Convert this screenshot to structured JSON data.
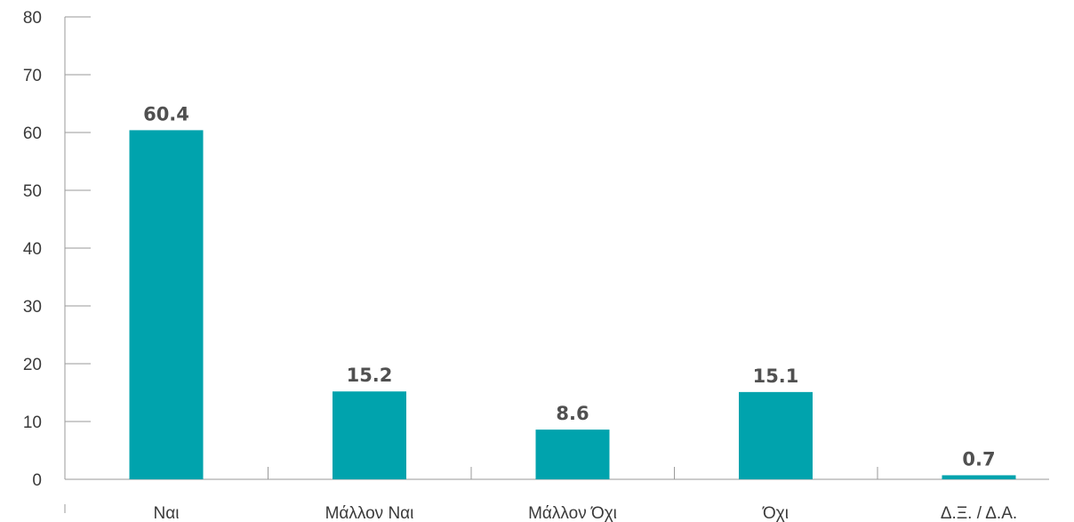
{
  "chart_data": {
    "type": "bar",
    "title": "",
    "xlabel": "",
    "ylabel": "",
    "categories": [
      "Ναι",
      "Μάλλον Ναι",
      "Μάλλον Όχι",
      "Όχι",
      "Δ.Ξ. / Δ.Α."
    ],
    "values": [
      60.4,
      15.2,
      8.6,
      15.1,
      0.7
    ],
    "value_labels": [
      "60.4",
      "15.2",
      "8.6",
      "15.1",
      "0.7"
    ],
    "ylim": [
      0,
      80
    ],
    "yticks": [
      "0",
      "10",
      "20",
      "30",
      "40",
      "50",
      "60",
      "70",
      "80"
    ],
    "grid": false,
    "legend": "none",
    "colors": {
      "bar": "#00a3ad"
    }
  }
}
